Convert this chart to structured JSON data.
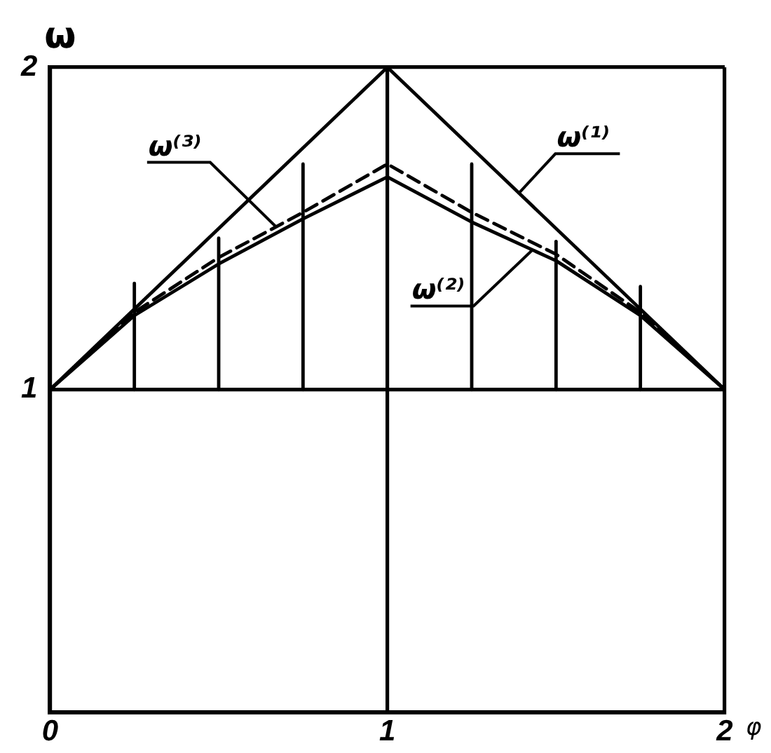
{
  "chart_data": {
    "type": "line",
    "xlabel": "φ",
    "ylabel": "ω",
    "x": [
      0,
      0.25,
      0.5,
      0.75,
      1,
      1.25,
      1.5,
      1.75,
      2
    ],
    "series": [
      {
        "name": "ω⁽¹⁾",
        "color": "#000000",
        "x": [
          0,
          1,
          2
        ],
        "values": [
          1,
          2,
          1
        ]
      },
      {
        "name": "ω⁽²⁾",
        "color": "#000000",
        "values": [
          1,
          1.23,
          1.39,
          1.53,
          1.66,
          1.52,
          1.4,
          1.23,
          1
        ]
      },
      {
        "name": "ω⁽³⁾",
        "color": "#000000",
        "line_style": "dashed",
        "values": [
          1,
          1.24,
          1.41,
          1.55,
          1.7,
          1.55,
          1.42,
          1.24,
          1
        ]
      },
      {
        "color": "#000000",
        "x": [
          0.25,
          0.25
        ],
        "values": [
          1,
          1.33
        ]
      },
      {
        "color": "#000000",
        "x": [
          0.5,
          0.5
        ],
        "values": [
          1,
          1.47
        ]
      },
      {
        "color": "#000000",
        "x": [
          0.75,
          0.75
        ],
        "values": [
          1,
          1.7
        ]
      },
      {
        "color": "#000000",
        "x": [
          1.25,
          1.25
        ],
        "values": [
          1,
          1.7
        ]
      },
      {
        "color": "#000000",
        "x": [
          1.5,
          1.5
        ],
        "values": [
          1,
          1.46
        ]
      },
      {
        "color": "#000000",
        "x": [
          1.75,
          1.75
        ],
        "values": [
          1,
          1.32
        ]
      }
    ],
    "xlim": [
      0,
      2
    ],
    "ylim": [
      0,
      2
    ],
    "xticks": [
      0,
      1,
      2
    ],
    "yticks": [
      1,
      2
    ],
    "grid": true,
    "legend": false,
    "marker": "none"
  }
}
